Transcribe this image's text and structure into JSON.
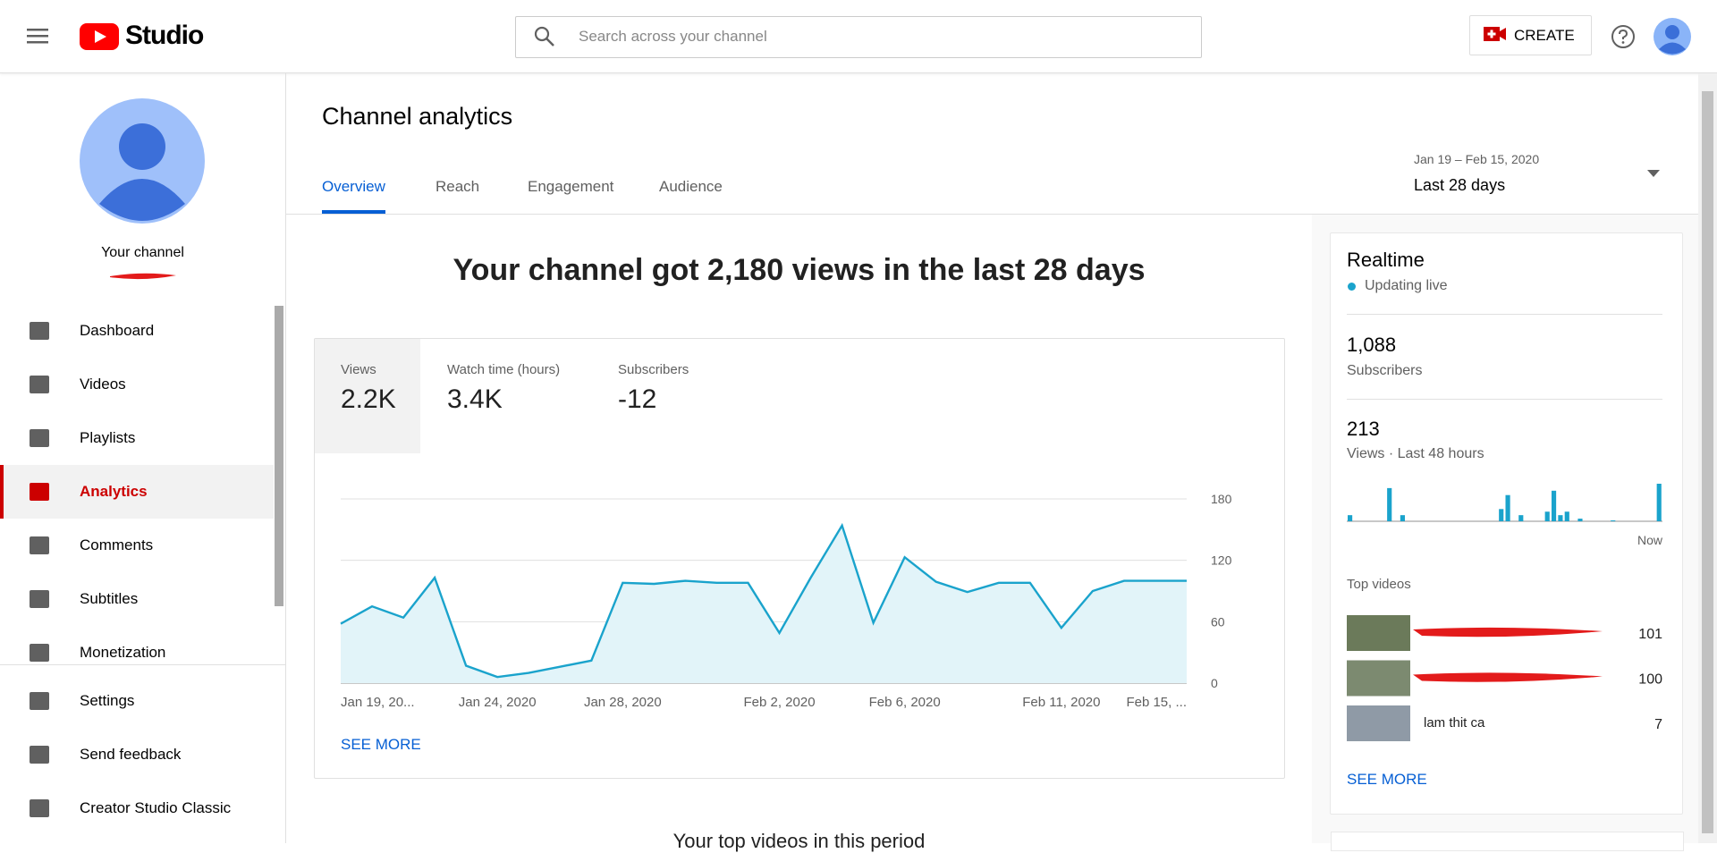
{
  "header": {
    "logo_text": "Studio",
    "search_placeholder": "Search across your channel",
    "create": "CREATE"
  },
  "sidebar": {
    "channel_label": "Your channel",
    "active_index": 3,
    "nav": [
      "Dashboard",
      "Videos",
      "Playlists",
      "Analytics",
      "Comments",
      "Subtitles",
      "Monetization"
    ],
    "footer_nav": [
      "Settings",
      "Send feedback",
      "Creator Studio Classic"
    ]
  },
  "main": {
    "title": "Channel analytics",
    "tabs": [
      "Overview",
      "Reach",
      "Engagement",
      "Audience"
    ],
    "active_tab": 0,
    "date_range": "Jan 19 – Feb 15, 2020",
    "period": "Last 28 days",
    "headline": "Your channel got 2,180 views in the last 28 days",
    "metrics": [
      {
        "label": "Views",
        "value": "2.2K"
      },
      {
        "label": "Watch time (hours)",
        "value": "3.4K"
      },
      {
        "label": "Subscribers",
        "value": "-12"
      }
    ],
    "selected_metric": 0,
    "see_more": "SEE MORE",
    "next_section": "Your top videos in this period"
  },
  "analytics_chart": {
    "type": "line",
    "color": "#1aa3cc",
    "fill": "#e2f4f9",
    "categories": [
      "Jan 19, 20...",
      null,
      null,
      null,
      null,
      "Jan 24, 2020",
      null,
      null,
      null,
      "Jan 28, 2020",
      null,
      null,
      null,
      null,
      "Feb 2, 2020",
      null,
      null,
      null,
      "Feb 6, 2020",
      null,
      null,
      null,
      null,
      "Feb 11, 2020",
      null,
      null,
      null,
      "Feb 15, ..."
    ],
    "values": [
      58,
      75,
      64,
      103,
      17,
      6,
      10,
      16,
      22,
      98,
      97,
      100,
      98,
      98,
      49,
      103,
      154,
      59,
      123,
      99,
      89,
      98,
      98,
      54,
      90,
      100,
      100,
      100
    ],
    "ylim": [
      0,
      180
    ],
    "yticks": [
      0,
      60,
      120,
      180
    ],
    "grid": true
  },
  "realtime": {
    "title": "Realtime",
    "status": "Updating live",
    "subscribers": "1,088",
    "subscribers_label": "Subscribers",
    "views": "213",
    "views_label": "Views · Last 48 hours",
    "bars_chart": {
      "type": "bar",
      "color": "#1aa3cc",
      "values": [
        7,
        0,
        0,
        0,
        0,
        0,
        38,
        0,
        7,
        0,
        0,
        0,
        0,
        0,
        0,
        0,
        0,
        0,
        0,
        0,
        0,
        0,
        0,
        14,
        30,
        0,
        7,
        0,
        0,
        0,
        11,
        35,
        7,
        11,
        0,
        3,
        0,
        0,
        0,
        0,
        1,
        0,
        0,
        0,
        0,
        0,
        0,
        43
      ],
      "end_label": "Now"
    },
    "top_videos_label": "Top videos",
    "top_videos": [
      {
        "name": null,
        "views": 101
      },
      {
        "name": null,
        "views": 100
      },
      {
        "name": "lam thit ca",
        "views": 7
      }
    ],
    "see_more": "SEE MORE"
  }
}
